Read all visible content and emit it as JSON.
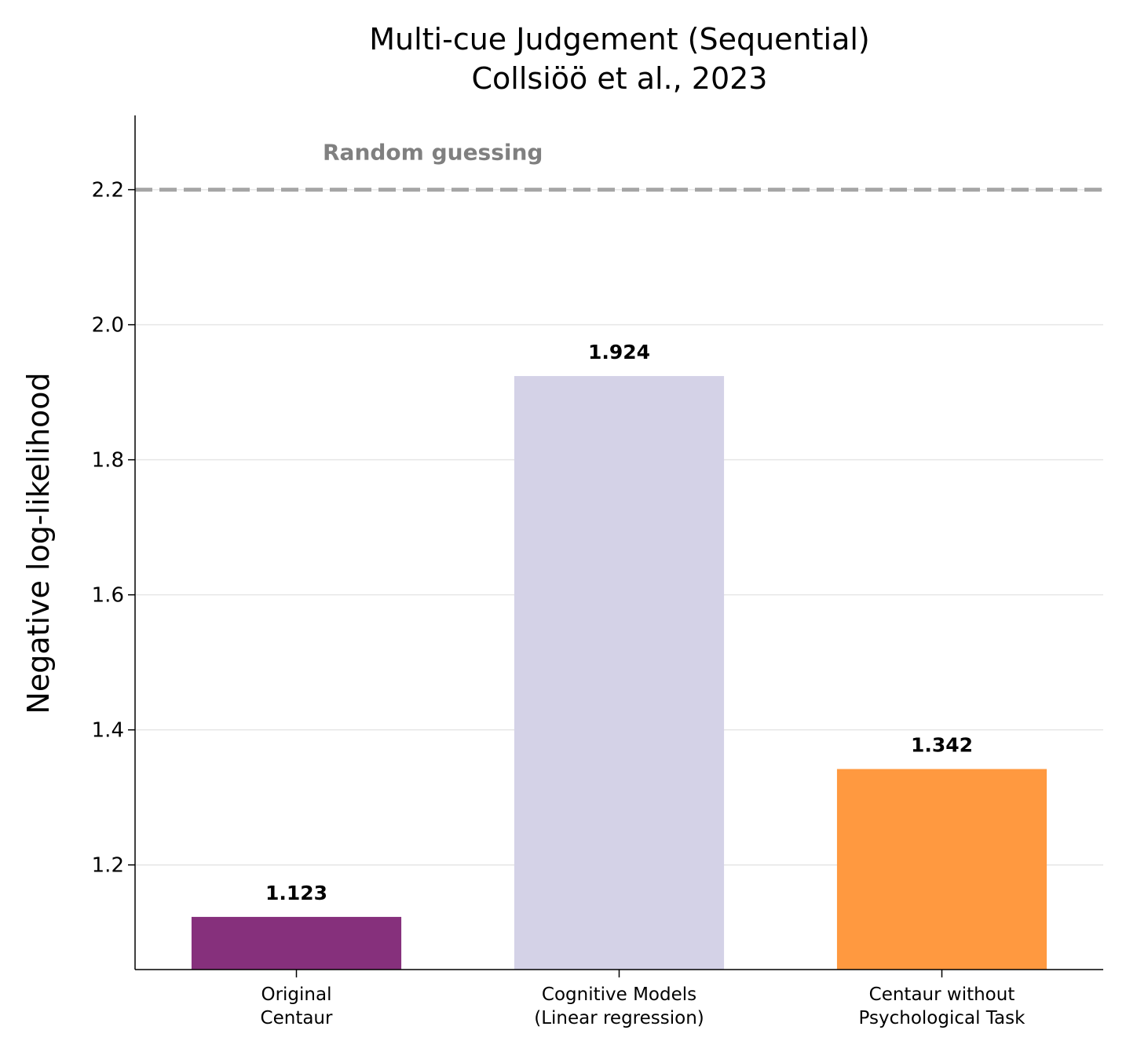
{
  "chart_data": {
    "type": "bar",
    "title": [
      "Multi-cue Judgement (Sequential)",
      "Collsiöö et al., 2023"
    ],
    "ylabel": "Negative log-likelihood",
    "xlabel": "",
    "categories": [
      [
        "Original",
        "Centaur"
      ],
      [
        "Cognitive Models",
        "(Linear regression)"
      ],
      [
        "Centaur without",
        "Psychological Task"
      ]
    ],
    "values": [
      1.123,
      1.924,
      1.342
    ],
    "value_labels": [
      "1.123",
      "1.924",
      "1.342"
    ],
    "colors": [
      "#86307c",
      "#d4d2e7",
      "#ff9940"
    ],
    "ylim": [
      1.045,
      2.31
    ],
    "yticks": [
      1.2,
      1.4,
      1.6,
      1.8,
      2.0,
      2.2
    ],
    "ytick_labels": [
      "1.2",
      "1.4",
      "1.6",
      "1.8",
      "2.0",
      "2.2"
    ],
    "grid": "horizontal",
    "reference_line": {
      "value": 2.2,
      "label": "Random guessing",
      "color": "#a6a6a6",
      "style": "dashed"
    }
  }
}
